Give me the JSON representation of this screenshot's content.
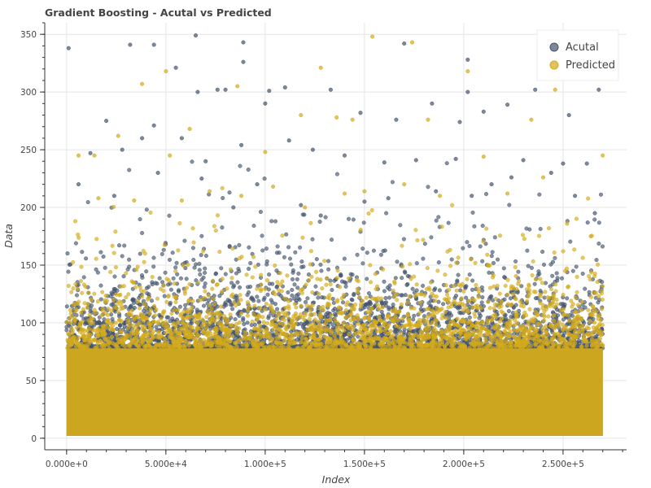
{
  "chart_data": {
    "type": "scatter",
    "title": "Gradient Boosting - Acutal vs Predicted",
    "xlabel": "Index",
    "ylabel": "Data",
    "xlim": [
      -11000,
      282000
    ],
    "ylim": [
      -10,
      360
    ],
    "x_ticks": [
      0,
      50000,
      100000,
      150000,
      200000,
      250000
    ],
    "x_tick_labels": [
      "0.000e+0",
      "5.000e+4",
      "1.000e+5",
      "1.500e+5",
      "2.000e+5",
      "2.500e+5"
    ],
    "x_minor_step": 10000,
    "y_ticks": [
      0,
      50,
      100,
      150,
      200,
      250,
      300,
      350
    ],
    "y_tick_labels": [
      "0",
      "50",
      "100",
      "150",
      "200",
      "250",
      "300",
      "350"
    ],
    "y_minor_step": 10,
    "grid": true,
    "legend_position": "top-right",
    "dense_band": {
      "x_range": [
        0,
        270000
      ],
      "y_range": [
        2,
        80
      ]
    },
    "series": [
      {
        "name": "Acutal",
        "color": "#44546e",
        "points": [
          [
            1000,
            338
          ],
          [
            20000,
            275
          ],
          [
            32000,
            341
          ],
          [
            44000,
            341
          ],
          [
            55000,
            321
          ],
          [
            65000,
            349
          ],
          [
            89000,
            343
          ],
          [
            89000,
            326
          ],
          [
            102000,
            301
          ],
          [
            110000,
            304
          ],
          [
            133000,
            302
          ],
          [
            170000,
            342
          ],
          [
            202000,
            328
          ],
          [
            202000,
            300
          ],
          [
            236000,
            302
          ],
          [
            253000,
            280
          ],
          [
            268000,
            302
          ],
          [
            66000,
            300
          ],
          [
            76000,
            302
          ],
          [
            80000,
            302
          ],
          [
            124000,
            250
          ],
          [
            112000,
            258
          ],
          [
            184000,
            290
          ],
          [
            210000,
            283
          ],
          [
            222000,
            289
          ],
          [
            198000,
            274
          ],
          [
            166000,
            276
          ],
          [
            148000,
            282
          ],
          [
            38000,
            260
          ],
          [
            58000,
            260
          ],
          [
            28000,
            250
          ],
          [
            12000,
            247
          ],
          [
            44000,
            271
          ],
          [
            70000,
            240
          ],
          [
            88000,
            254
          ],
          [
            100000,
            290
          ],
          [
            140000,
            245
          ],
          [
            160000,
            239
          ],
          [
            176000,
            241
          ],
          [
            196000,
            242
          ],
          [
            230000,
            241
          ],
          [
            250000,
            238
          ],
          [
            262000,
            238
          ],
          [
            6000,
            220
          ],
          [
            24000,
            210
          ],
          [
            46000,
            230
          ],
          [
            68000,
            225
          ],
          [
            84000,
            200
          ],
          [
            96000,
            220
          ],
          [
            118000,
            202
          ],
          [
            128000,
            193
          ],
          [
            150000,
            205
          ],
          [
            162000,
            208
          ],
          [
            186000,
            214
          ],
          [
            204000,
            210
          ],
          [
            214000,
            220
          ],
          [
            224000,
            226
          ],
          [
            244000,
            230
          ],
          [
            256000,
            210
          ],
          [
            266000,
            195
          ]
        ]
      },
      {
        "name": "Predicted",
        "color": "#d4aa1a",
        "points": [
          [
            154000,
            348
          ],
          [
            174000,
            343
          ],
          [
            50000,
            318
          ],
          [
            128000,
            321
          ],
          [
            86000,
            305
          ],
          [
            38000,
            307
          ],
          [
            202000,
            318
          ],
          [
            246000,
            302
          ],
          [
            26000,
            262
          ],
          [
            62000,
            268
          ],
          [
            144000,
            276
          ],
          [
            182000,
            276
          ],
          [
            100000,
            248
          ],
          [
            6000,
            245
          ],
          [
            14000,
            245
          ],
          [
            52000,
            245
          ],
          [
            118000,
            280
          ],
          [
            136000,
            278
          ],
          [
            234000,
            276
          ],
          [
            270000,
            245
          ],
          [
            88000,
            210
          ],
          [
            120000,
            200
          ],
          [
            150000,
            214
          ],
          [
            170000,
            220
          ],
          [
            210000,
            244
          ],
          [
            240000,
            226
          ],
          [
            16000,
            208
          ],
          [
            34000,
            206
          ],
          [
            58000,
            206
          ],
          [
            72000,
            214
          ],
          [
            104000,
            218
          ],
          [
            140000,
            212
          ],
          [
            188000,
            210
          ],
          [
            222000,
            212
          ],
          [
            252000,
            186
          ],
          [
            264000,
            175
          ]
        ]
      }
    ]
  }
}
